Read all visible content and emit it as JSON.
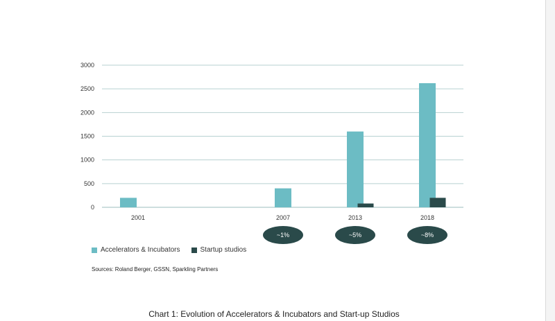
{
  "chart_data": {
    "type": "bar",
    "categories": [
      "2001",
      "2007",
      "2013",
      "2018"
    ],
    "series": [
      {
        "name": "Accelerators & Incubators",
        "color": "#6cbcc4",
        "values": [
          200,
          400,
          1600,
          2620
        ]
      },
      {
        "name": "Startup studios",
        "color": "#2a4a4a",
        "values": [
          0,
          0,
          80,
          200
        ]
      }
    ],
    "ylim": [
      0,
      3000
    ],
    "yticks": [
      0,
      500,
      1000,
      1500,
      2000,
      2500,
      3000
    ],
    "grid": true,
    "legend_position": "bottom-left",
    "annotations": [
      {
        "category": "2007",
        "text": "~1%"
      },
      {
        "category": "2013",
        "text": "~5%"
      },
      {
        "category": "2018",
        "text": "~8%"
      }
    ],
    "annotation_color": "#2a4a4a",
    "title": "",
    "xlabel": "",
    "ylabel": ""
  },
  "sources": "Sources: Roland Berger, GSSN, Sparkling Partners",
  "caption": "Chart 1: Evolution of Accelerators & Incubators and Start-up Studios"
}
